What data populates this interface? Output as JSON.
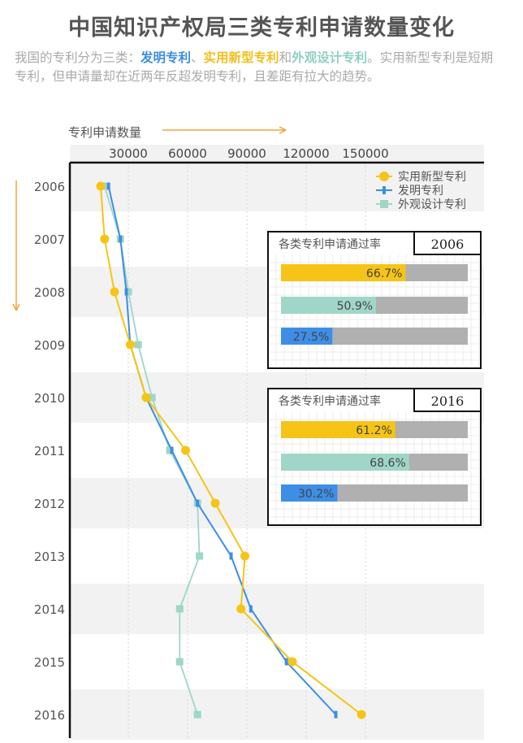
{
  "title": "中国知识产权局三类专利申请数量变化",
  "subtitle": {
    "p1": "我国的专利分为三类：",
    "invention": "发明专利",
    "sep1": "、",
    "utility": "实用新型专利",
    "sep2": "和",
    "design": "外观设计专利",
    "p2": "。实用新型专利是短期专利，但申请量却在近两年反超发明专利，且差距有拉大的趋势。"
  },
  "colors": {
    "utility": "#f6c416",
    "invention": "#3d8ee6",
    "design": "#9fd6c8",
    "track": "#b0b0b0",
    "axis": "#111111",
    "band": "#f2f2f2",
    "arrow": "#f0a53a"
  },
  "chart_data": {
    "type": "line",
    "orientation": "horizontal-values-vertical-time",
    "title": "中国知识产权局三类专利申请数量变化",
    "xlabel": "专利申请数量",
    "x_ticks": [
      30000,
      60000,
      90000,
      120000,
      150000
    ],
    "xlim": [
      0,
      165000
    ],
    "categories": [
      "2006",
      "2007",
      "2008",
      "2009",
      "2010",
      "2011",
      "2012",
      "2013",
      "2014",
      "2015",
      "2016"
    ],
    "series": [
      {
        "name": "实用新型专利",
        "key": "utility",
        "marker": "circle",
        "values": [
          16000,
          18000,
          23000,
          31000,
          39000,
          59000,
          74000,
          89000,
          87000,
          113000,
          148000
        ]
      },
      {
        "name": "发明专利",
        "key": "invention",
        "marker": "dash",
        "values": [
          20000,
          26000,
          29000,
          31000,
          39000,
          52000,
          65000,
          82000,
          92000,
          110000,
          135000
        ]
      },
      {
        "name": "外观设计专利",
        "key": "design",
        "marker": "square",
        "values": [
          18000,
          26000,
          30000,
          35000,
          42000,
          51000,
          65000,
          66000,
          56000,
          56000,
          65000
        ]
      }
    ],
    "legend_position": "top-right",
    "pass_rates": [
      {
        "title": "各类专利申请通过率",
        "year": "2006",
        "bars": [
          {
            "key": "utility",
            "value": 66.7,
            "label": "66.7%"
          },
          {
            "key": "design",
            "value": 50.9,
            "label": "50.9%"
          },
          {
            "key": "invention",
            "value": 27.5,
            "label": "27.5%"
          }
        ]
      },
      {
        "title": "各类专利申请通过率",
        "year": "2016",
        "bars": [
          {
            "key": "utility",
            "value": 61.2,
            "label": "61.2%"
          },
          {
            "key": "design",
            "value": 68.6,
            "label": "68.6%"
          },
          {
            "key": "invention",
            "value": 30.2,
            "label": "30.2%"
          }
        ]
      }
    ]
  }
}
